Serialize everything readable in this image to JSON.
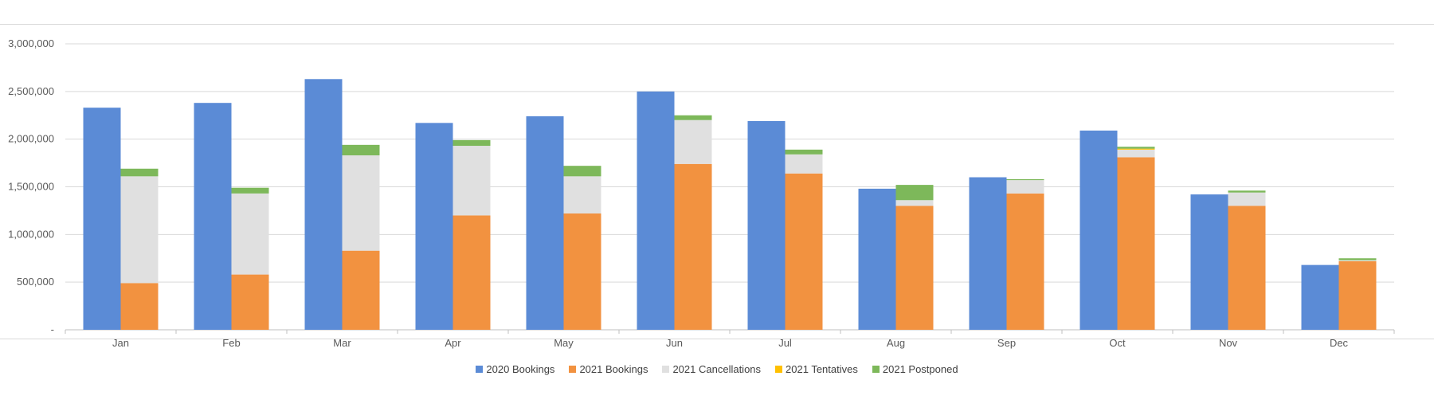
{
  "colors": {
    "2020 Bookings": "#5B8BD6",
    "2021 Bookings": "#F29240",
    "2021 Cancellations": "#E0E0E0",
    "2021 Tentatives": "#FFC000",
    "2021 Postponed": "#7DB85A",
    "grid": "#d9d9d9",
    "axis": "#bfbfbf"
  },
  "chart_data": {
    "type": "bar",
    "layout": "clustered + stacked",
    "categories": [
      "Jan",
      "Feb",
      "Mar",
      "Apr",
      "May",
      "Jun",
      "Jul",
      "Aug",
      "Sep",
      "Oct",
      "Nov",
      "Dec"
    ],
    "ylim": [
      0,
      3000000
    ],
    "yticks": [
      0,
      500000,
      1000000,
      1500000,
      2000000,
      2500000,
      3000000
    ],
    "ytick_labels": [
      "-",
      "500,000",
      "1,000,000",
      "1,500,000",
      "2,000,000",
      "2,500,000",
      "3,000,000"
    ],
    "grid": true,
    "legend_position": "bottom",
    "series": [
      {
        "name": "2020 Bookings",
        "stack": "2020",
        "values": [
          2330000,
          2380000,
          2630000,
          2170000,
          2240000,
          2500000,
          2190000,
          1480000,
          1600000,
          2090000,
          1420000,
          680000
        ]
      },
      {
        "name": "2021 Bookings",
        "stack": "2021",
        "values": [
          490000,
          580000,
          830000,
          1200000,
          1220000,
          1740000,
          1640000,
          1300000,
          1430000,
          1810000,
          1300000,
          720000
        ]
      },
      {
        "name": "2021 Cancellations",
        "stack": "2021",
        "values": [
          1120000,
          850000,
          1000000,
          730000,
          390000,
          460000,
          200000,
          60000,
          140000,
          80000,
          140000,
          10000
        ]
      },
      {
        "name": "2021 Tentatives",
        "stack": "2021",
        "values": [
          0,
          0,
          0,
          0,
          0,
          0,
          0,
          0,
          0,
          10000,
          0,
          0
        ]
      },
      {
        "name": "2021 Postponed",
        "stack": "2021",
        "values": [
          80000,
          60000,
          110000,
          60000,
          110000,
          50000,
          50000,
          160000,
          10000,
          20000,
          20000,
          20000
        ]
      }
    ]
  }
}
